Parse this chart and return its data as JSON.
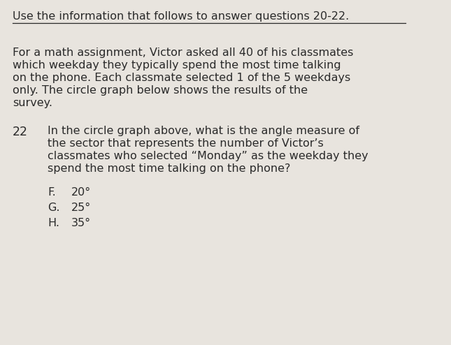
{
  "background_color": "#e8e4de",
  "header_text": "Use the information that follows to answer questions 20-22.",
  "header_fontsize": 11.5,
  "header_color": "#2a2a2a",
  "body_lines": [
    "For a math assignment, Victor asked all 40 of his classmates",
    "which weekday they typically spend the most time talking",
    "on the phone. Each classmate selected 1 of the 5 weekdays",
    "only. The circle graph below shows the results of the",
    "survey."
  ],
  "body_fontsize": 11.5,
  "body_color": "#2a2a2a",
  "question_number": "22",
  "question_number_fontsize": 12.5,
  "question_lines": [
    "In the circle graph above, what is the angle measure of",
    "the sector that represents the number of Victor’s",
    "classmates who selected “Monday” as the weekday they",
    "spend the most time talking on the phone?"
  ],
  "question_fontsize": 11.5,
  "question_color": "#2a2a2a",
  "answer_choices": [
    {
      "label": "F.",
      "text": "20°"
    },
    {
      "label": "G.",
      "text": "25°"
    },
    {
      "label": "H.",
      "text": "35°"
    }
  ],
  "answer_fontsize": 11.5,
  "answer_color": "#2a2a2a"
}
